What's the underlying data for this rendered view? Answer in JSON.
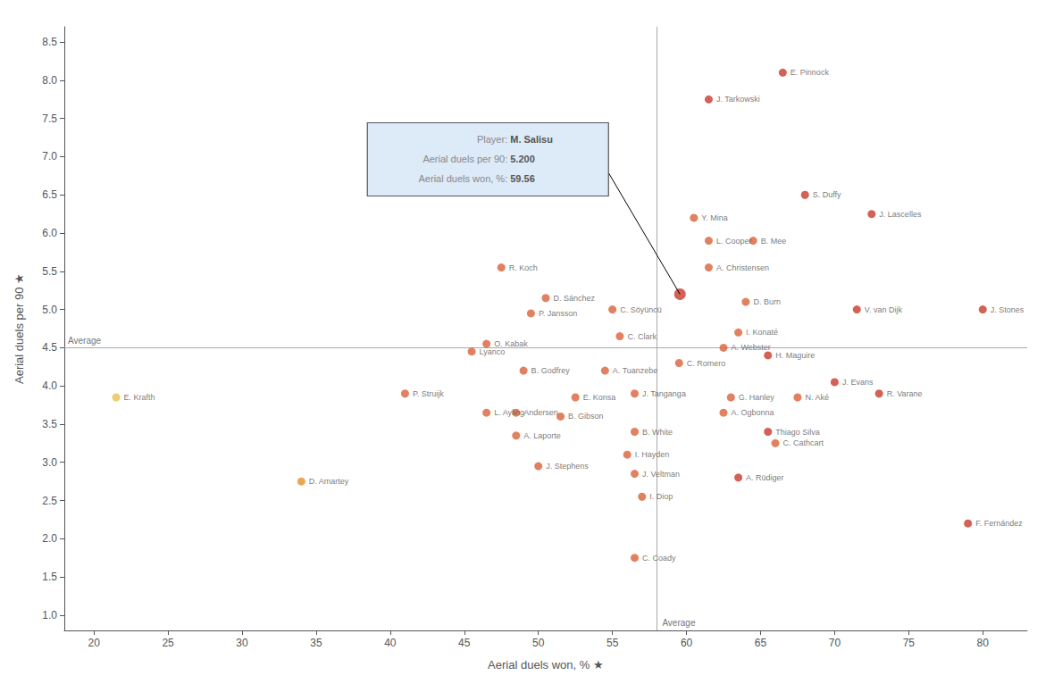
{
  "chart_data": {
    "type": "scatter",
    "xlabel": "Aerial duels won, % ★",
    "ylabel": "Aerial duels per 90 ★",
    "xlim": [
      18,
      83
    ],
    "ylim": [
      0.8,
      8.7
    ],
    "xticks": [
      20,
      25,
      30,
      35,
      40,
      45,
      50,
      55,
      60,
      65,
      70,
      75,
      80
    ],
    "yticks": [
      {
        "value": 1.0,
        "label": "1.0"
      },
      {
        "value": 1.5,
        "label": "1.5"
      },
      {
        "value": 2.0,
        "label": "2.0"
      },
      {
        "value": 2.5,
        "label": "2.5"
      },
      {
        "value": 3.0,
        "label": "3.0"
      },
      {
        "value": 3.5,
        "label": "3.5"
      },
      {
        "value": 4.0,
        "label": "4.0"
      },
      {
        "value": 4.5,
        "label": "4.5"
      },
      {
        "value": 5.0,
        "label": "5.0"
      },
      {
        "value": 5.5,
        "label": "5.5"
      },
      {
        "value": 6.0,
        "label": "6.0"
      },
      {
        "value": 6.5,
        "label": "6.5"
      },
      {
        "value": 7.0,
        "label": "7.0"
      },
      {
        "value": 7.5,
        "label": "7.5"
      },
      {
        "value": 8.0,
        "label": "8.0"
      },
      {
        "value": 8.5,
        "label": "8.5"
      }
    ],
    "grid": false,
    "labels": [
      "E. Pinnock",
      "J. Tarkowski",
      "S. Duffy",
      "J. Lascelles",
      "Y. Mina",
      "L. Cooper",
      "B. Mee",
      "A. Christensen",
      "R. Koch",
      "D. Burn",
      "D. Sánchez",
      "C. Söyüncü",
      "V. van Dijk",
      "P. Jansson",
      "I. Konaté",
      "C. Clark",
      "J. Stones",
      "O. Kabak",
      "A. Webster",
      "Lyanco",
      "H. Maguire",
      "C. Romero",
      "B. Godfrey",
      "A. Tuanzebe",
      "J. Evans",
      "P. Struijk",
      "J. Tanganga",
      "E. Konsa",
      "G. Hanley",
      "N. Aké",
      "R. Varane",
      "L. Ayling",
      "Andersen",
      "B. Gibson",
      "A. Ogbonna",
      "Thiago Silva",
      "A. Laporte",
      "B. White",
      "C. Cathcart",
      "I. Hayden",
      "J. Stephens",
      "J. Veltman",
      "A. Rüdiger",
      "D. Amartey",
      "I. Diop",
      "F. Fernández",
      "C. Coady",
      "E. Krafth",
      null
    ],
    "x": [
      66.5,
      61.5,
      68.0,
      72.5,
      60.5,
      61.5,
      64.5,
      61.5,
      47.5,
      64.0,
      50.5,
      55.0,
      71.5,
      49.5,
      63.5,
      55.5,
      80.0,
      46.5,
      62.5,
      45.5,
      65.5,
      59.5,
      49.0,
      54.5,
      70.0,
      41.0,
      56.5,
      52.5,
      63.0,
      67.5,
      73.0,
      46.5,
      48.5,
      51.5,
      62.5,
      65.5,
      48.5,
      56.5,
      66.0,
      56.0,
      50.0,
      56.5,
      63.5,
      34.0,
      57.0,
      79.0,
      56.5,
      21.5,
      59.56
    ],
    "values": [
      8.1,
      7.75,
      6.5,
      6.25,
      6.2,
      5.9,
      5.9,
      5.55,
      5.55,
      5.1,
      5.15,
      5.0,
      5.0,
      4.95,
      4.7,
      4.65,
      5.0,
      4.55,
      4.5,
      4.45,
      4.4,
      4.3,
      4.2,
      4.2,
      4.05,
      3.9,
      3.9,
      3.85,
      3.85,
      3.85,
      3.9,
      3.65,
      3.65,
      3.6,
      3.65,
      3.4,
      3.35,
      3.4,
      3.25,
      3.1,
      2.95,
      2.85,
      2.8,
      2.75,
      2.55,
      2.2,
      1.75,
      3.85,
      5.2
    ],
    "colors": [
      "#c93a2a",
      "#c93a2a",
      "#c93a2a",
      "#c93a2a",
      "#d9623a",
      "#d9623a",
      "#d9623a",
      "#d9623a",
      "#d9623a",
      "#d9623a",
      "#d9623a",
      "#d9623a",
      "#c93a2a",
      "#d9623a",
      "#d9623a",
      "#d9623a",
      "#c93a2a",
      "#d9623a",
      "#d9623a",
      "#d9623a",
      "#c93a2a",
      "#d9623a",
      "#d9623a",
      "#d9623a",
      "#c93a2a",
      "#d9623a",
      "#d9623a",
      "#d9623a",
      "#d9623a",
      "#d9623a",
      "#c93a2a",
      "#d9623a",
      "#d9623a",
      "#d9623a",
      "#d9623a",
      "#c93a2a",
      "#d9623a",
      "#d9623a",
      "#d9623a",
      "#d9623a",
      "#d9623a",
      "#d9623a",
      "#c93a2a",
      "#e0922a",
      "#d9623a",
      "#c93a2a",
      "#d9623a",
      "#e8c050",
      "#c93a2a"
    ],
    "reference_lines": [
      {
        "axis": "x",
        "value": 58.0,
        "label": "Average"
      },
      {
        "axis": "y",
        "value": 4.5,
        "label": "Average"
      }
    ],
    "annotation": {
      "x": 59.56,
      "y": 5.2,
      "lines": [
        {
          "label": "Player: ",
          "value": "M. Salisu"
        },
        {
          "label": "Aerial duels per 90: ",
          "value": "5.200"
        },
        {
          "label": "Aerial duels won, %: ",
          "value": "59.56"
        }
      ]
    }
  }
}
